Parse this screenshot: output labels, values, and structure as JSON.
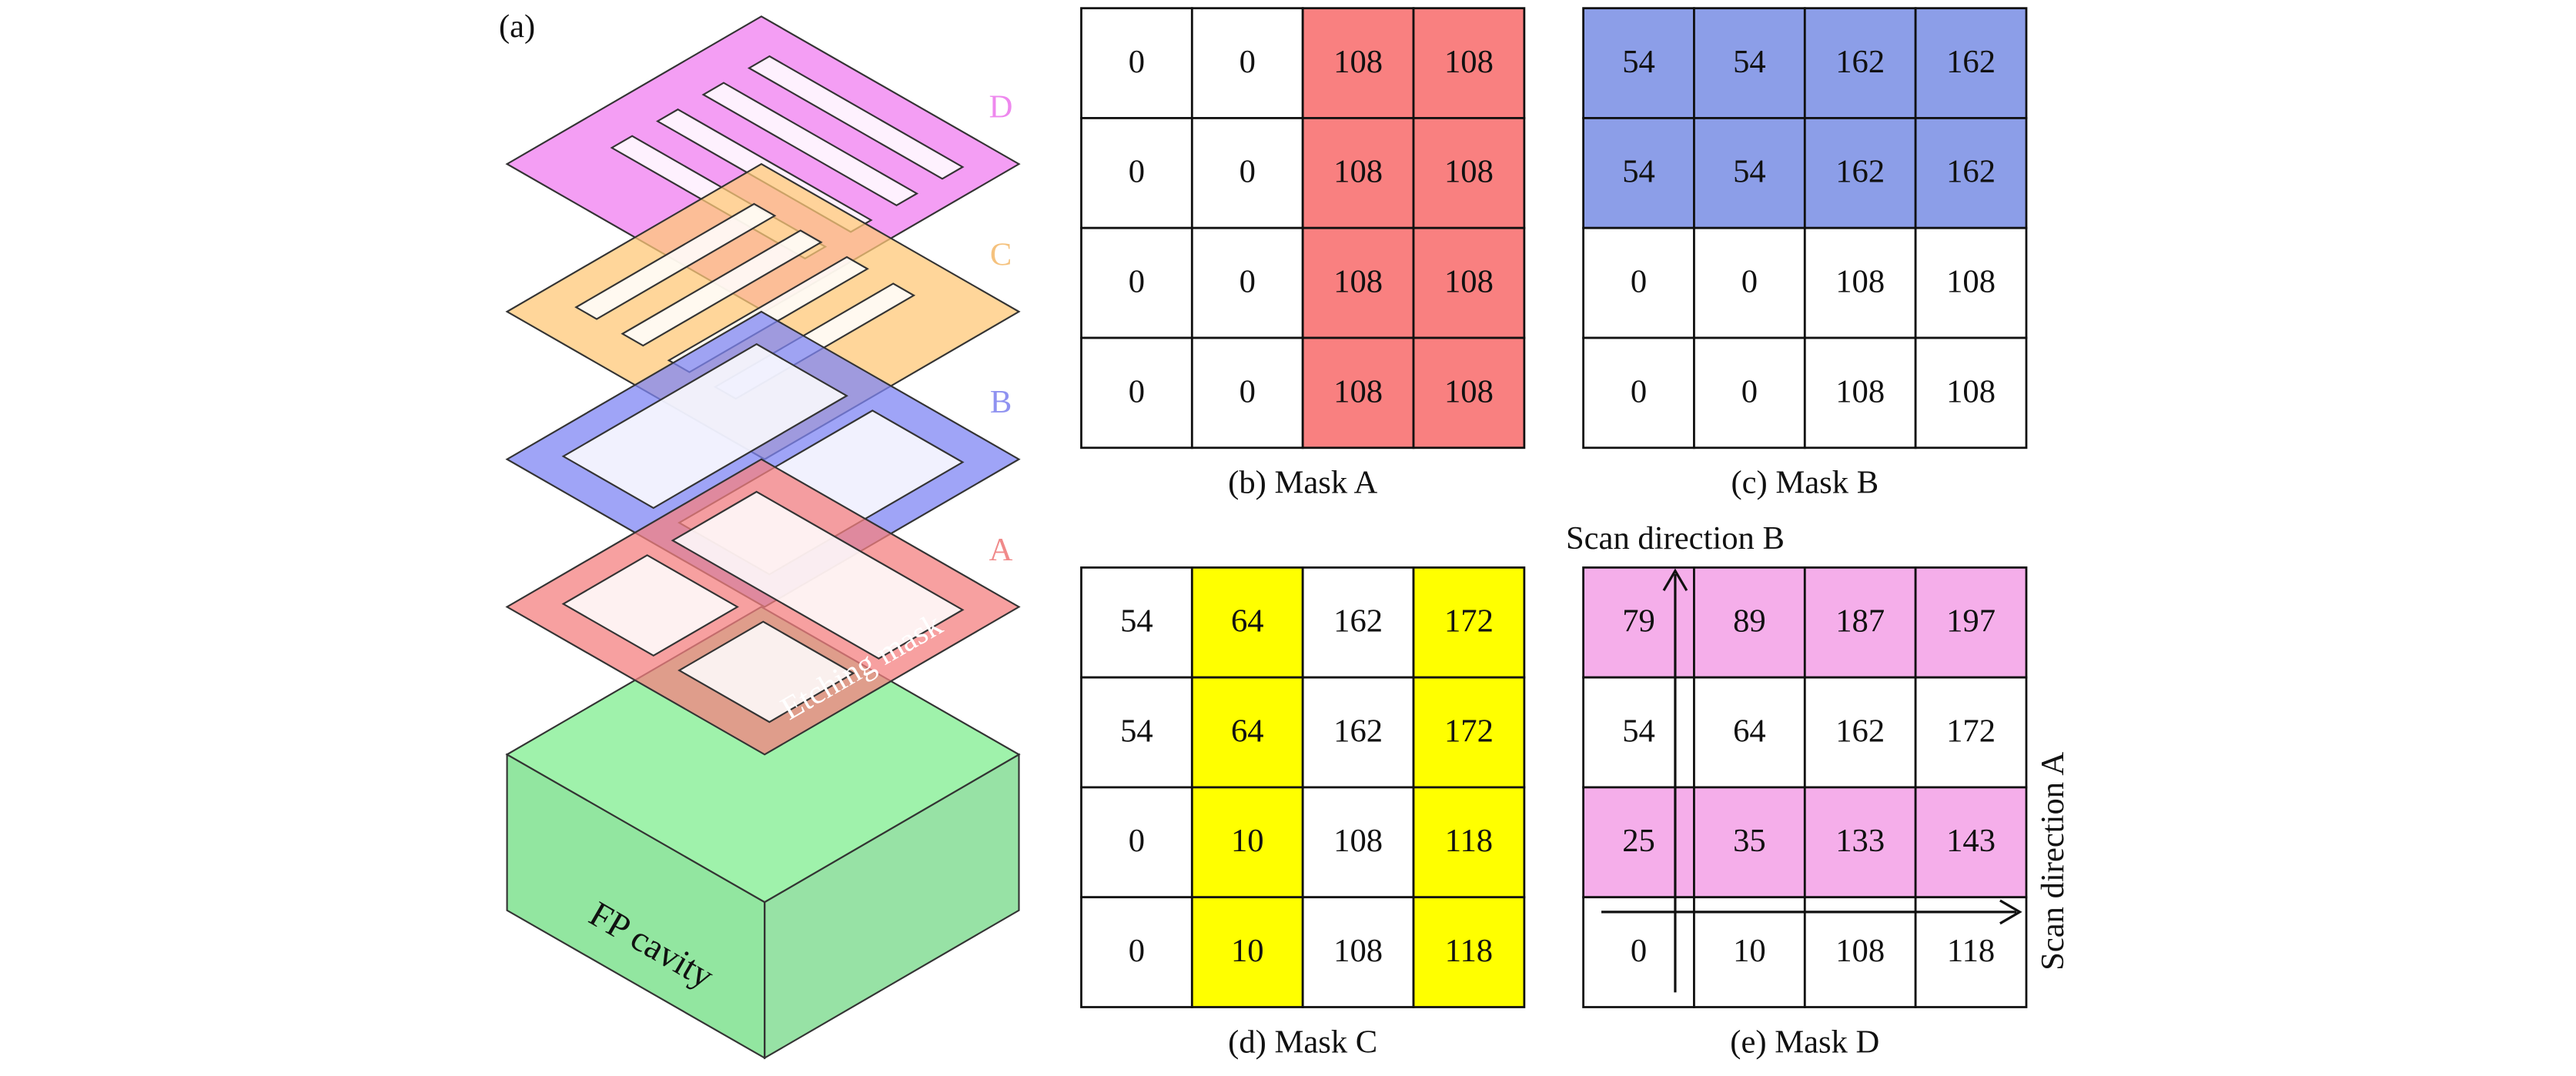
{
  "panel_a": {
    "label": "(a)",
    "layers": [
      "D",
      "C",
      "B",
      "A"
    ],
    "etching_mask": "Etching mask",
    "fp_cavity": "FP cavity"
  },
  "masks": [
    {
      "caption": "(b) Mask A",
      "rows": [
        [
          0,
          0,
          108,
          108
        ],
        [
          0,
          0,
          108,
          108
        ],
        [
          0,
          0,
          108,
          108
        ],
        [
          0,
          0,
          108,
          108
        ]
      ]
    },
    {
      "caption": "(c) Mask B",
      "rows": [
        [
          54,
          54,
          162,
          162
        ],
        [
          54,
          54,
          162,
          162
        ],
        [
          0,
          0,
          108,
          108
        ],
        [
          0,
          0,
          108,
          108
        ]
      ]
    },
    {
      "caption": "(d) Mask C",
      "rows": [
        [
          54,
          64,
          162,
          172
        ],
        [
          54,
          64,
          162,
          172
        ],
        [
          0,
          10,
          108,
          118
        ],
        [
          0,
          10,
          108,
          118
        ]
      ]
    },
    {
      "caption": "(e) Mask D",
      "rows": [
        [
          79,
          89,
          187,
          197
        ],
        [
          54,
          64,
          162,
          172
        ],
        [
          25,
          35,
          133,
          143
        ],
        [
          0,
          10,
          108,
          118
        ]
      ]
    }
  ],
  "scan_direction_b": "Scan direction B",
  "scan_direction_a": "Scan direction A"
}
